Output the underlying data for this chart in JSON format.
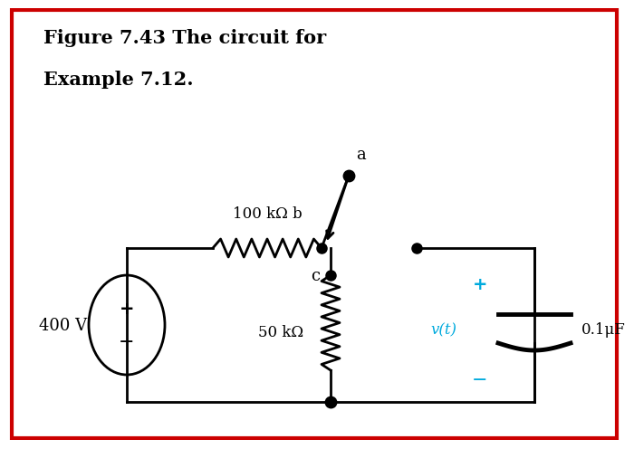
{
  "title_line1": "Figure 7.43 The circuit for",
  "title_line2": "Example 7.12.",
  "title_fontsize": 15,
  "title_fontweight": "bold",
  "bg_color": "#ffffff",
  "border_color": "#cc0000",
  "circuit_color": "#000000",
  "cyan_color": "#00aadd",
  "label_400V": "400 V",
  "label_100k": "100 kΩ b",
  "label_50k": "50 kΩ",
  "label_vt": "v(t)",
  "label_cap": "0.1μF",
  "label_a": "a",
  "label_c": "c",
  "label_plus_src": "+",
  "label_minus_src": "−",
  "label_plus_cap": "+",
  "label_minus_cap": "−"
}
